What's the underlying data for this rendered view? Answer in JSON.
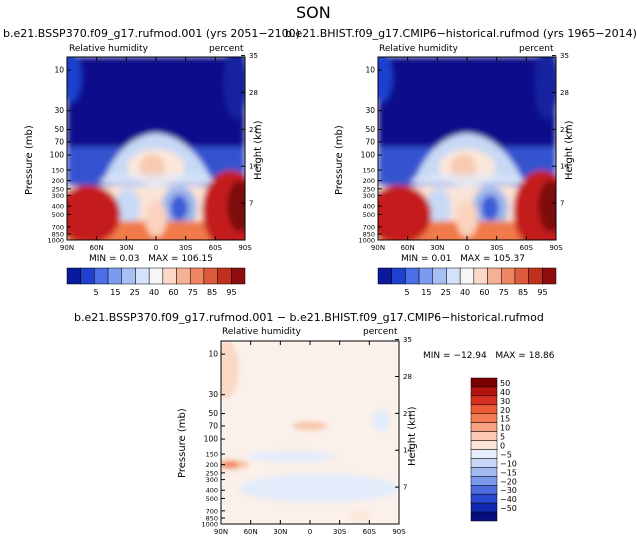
{
  "page_title": "SON",
  "chart_data": [
    {
      "type": "heatmap",
      "title": "b.e21.BSSP370.f09_g17.rufmod.001 (yrs 2051−2100)",
      "variable": "Relative humidity",
      "units": "percent",
      "xlabel": "",
      "ylabel": "Pressure (mb)",
      "y2label": "Height (km)",
      "x_ticks": [
        "90N",
        "60N",
        "30N",
        "0",
        "30S",
        "60S",
        "90S"
      ],
      "y_ticks": [
        "10",
        "30",
        "50",
        "70",
        "100",
        "150",
        "200",
        "250",
        "300",
        "400",
        "500",
        "700",
        "850",
        "1000"
      ],
      "y2_ticks": [
        "35",
        "28",
        "21",
        "14",
        "7"
      ],
      "min_label": "MIN =",
      "min": "0.03",
      "max_label": "MAX =",
      "max": "106.15",
      "colorbar_levels": [
        "5",
        "15",
        "25",
        "40",
        "60",
        "75",
        "85",
        "95"
      ]
    },
    {
      "type": "heatmap",
      "title": "b.e21.BHIST.f09_g17.CMIP6−historical.rufmod (yrs 1965−2014)",
      "variable": "Relative humidity",
      "units": "percent",
      "xlabel": "",
      "ylabel": "Pressure (mb)",
      "y2label": "Height (km)",
      "x_ticks": [
        "90N",
        "60N",
        "30N",
        "0",
        "30S",
        "60S",
        "90S"
      ],
      "y_ticks": [
        "10",
        "30",
        "50",
        "70",
        "100",
        "150",
        "200",
        "250",
        "300",
        "400",
        "500",
        "700",
        "850",
        "1000"
      ],
      "y2_ticks": [
        "35",
        "28",
        "21",
        "14",
        "7"
      ],
      "min_label": "MIN =",
      "min": "0.01",
      "max_label": "MAX =",
      "max": "105.37",
      "colorbar_levels": [
        "5",
        "15",
        "25",
        "40",
        "60",
        "75",
        "85",
        "95"
      ]
    },
    {
      "type": "heatmap",
      "title": "b.e21.BSSP370.f09_g17.rufmod.001 − b.e21.BHIST.f09_g17.CMIP6−historical.rufmod",
      "variable": "Relative humidity",
      "units": "percent",
      "xlabel": "",
      "ylabel": "Pressure (mb)",
      "y2label": "Height (km)",
      "x_ticks": [
        "90N",
        "60N",
        "30N",
        "0",
        "30S",
        "60S",
        "90S"
      ],
      "y_ticks": [
        "10",
        "30",
        "50",
        "70",
        "100",
        "150",
        "200",
        "250",
        "300",
        "400",
        "500",
        "700",
        "850",
        "1000"
      ],
      "y2_ticks": [
        "35",
        "28",
        "21",
        "14",
        "7"
      ],
      "min_label": "MIN =",
      "min": "−12.94",
      "max_label": "MAX =",
      "max": "18.86",
      "colorbar_levels": [
        "50",
        "40",
        "30",
        "20",
        "15",
        "10",
        "5",
        "0",
        "−5",
        "−10",
        "−15",
        "−20",
        "−30",
        "−40",
        "−50"
      ]
    }
  ],
  "colors": {
    "dark_blue": "#08108c",
    "mid_blue": "#3a5bd6",
    "light_blue": "#c7d9f5",
    "near_white": "#fbf0ea",
    "peach": "#f7c9ae",
    "orange": "#f07a48",
    "red": "#c41a1a",
    "dark_red": "#7d0a0a"
  }
}
